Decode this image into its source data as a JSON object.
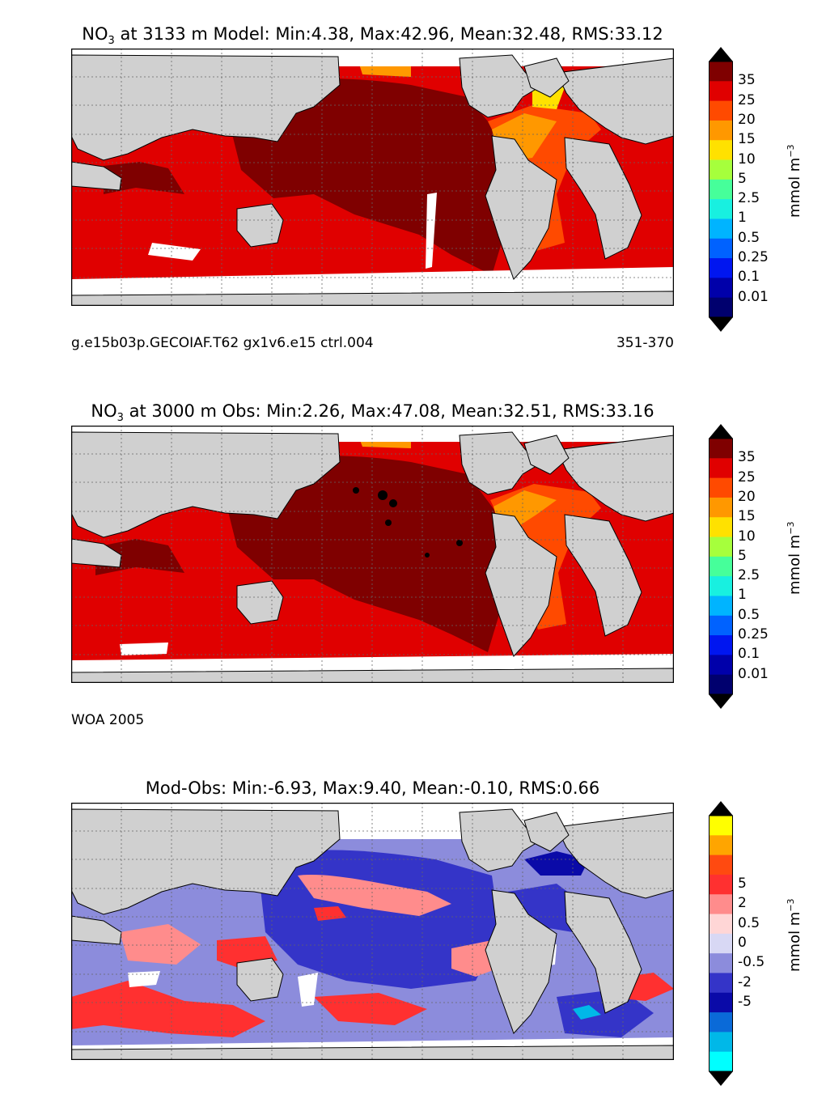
{
  "panels": [
    {
      "title": {
        "var_prefix": "NO",
        "var_sub": "3",
        "rest": " at 3133 m Model: Min:4.38, Max:42.96, Mean:32.48, RMS:33.12"
      },
      "footer_left": "g.e15b03p.GECOIAF.T62 gx1v6.e15 ctrl.004",
      "footer_right": "351-370",
      "colorbar": {
        "unit": "mmol m",
        "unit_exp": "−3",
        "labels": [
          "35",
          "25",
          "20",
          "15",
          "10",
          "5",
          "2.5",
          "1",
          "0.5",
          "0.25",
          "0.1",
          "0.01"
        ],
        "colors": [
          "#7f0000",
          "#e00000",
          "#ff4a00",
          "#ff9800",
          "#ffe100",
          "#a6ff3c",
          "#46ff9a",
          "#18f0e0",
          "#00b4ff",
          "#0062ff",
          "#0016f0",
          "#0000aa",
          "#00006e"
        ],
        "over_color": "#000000",
        "under_color": "#000000"
      }
    },
    {
      "title": {
        "var_prefix": "NO",
        "var_sub": "3",
        "rest": " at 3000 m Obs: Min:2.26, Max:47.08, Mean:32.51, RMS:33.16"
      },
      "footer_left": "WOA 2005",
      "footer_right": "",
      "colorbar": {
        "unit": "mmol m",
        "unit_exp": "−3",
        "labels": [
          "35",
          "25",
          "20",
          "15",
          "10",
          "5",
          "2.5",
          "1",
          "0.5",
          "0.25",
          "0.1",
          "0.01"
        ],
        "colors": [
          "#7f0000",
          "#e00000",
          "#ff4a00",
          "#ff9800",
          "#ffe100",
          "#a6ff3c",
          "#46ff9a",
          "#18f0e0",
          "#00b4ff",
          "#0062ff",
          "#0016f0",
          "#0000aa",
          "#00006e"
        ],
        "over_color": "#000000",
        "under_color": "#000000"
      }
    },
    {
      "title": {
        "var_prefix": "",
        "var_sub": "",
        "rest": "Mod-Obs: Min:-6.93, Max:9.40, Mean:-0.10, RMS:0.66"
      },
      "footer_left": "",
      "footer_right": "",
      "colorbar": {
        "unit": "mmol m",
        "unit_exp": "−3",
        "labels": [
          "5",
          "2",
          "0.5",
          "0",
          "-0.5",
          "-2",
          "-5"
        ],
        "colors": [
          "#ffff00",
          "#ffa500",
          "#ff4a10",
          "#ff3030",
          "#ff8c8c",
          "#ffd6d6",
          "#d8d8f4",
          "#8c8cdc",
          "#3434c8",
          "#0a0aa8",
          "#0a6ad8",
          "#00b8e8",
          "#00ffff"
        ],
        "over_color": "#000000",
        "under_color": "#000000"
      }
    }
  ],
  "map_colors": {
    "land": "#d0d0d0",
    "missing": "#ffffff",
    "grid": "#666666"
  }
}
